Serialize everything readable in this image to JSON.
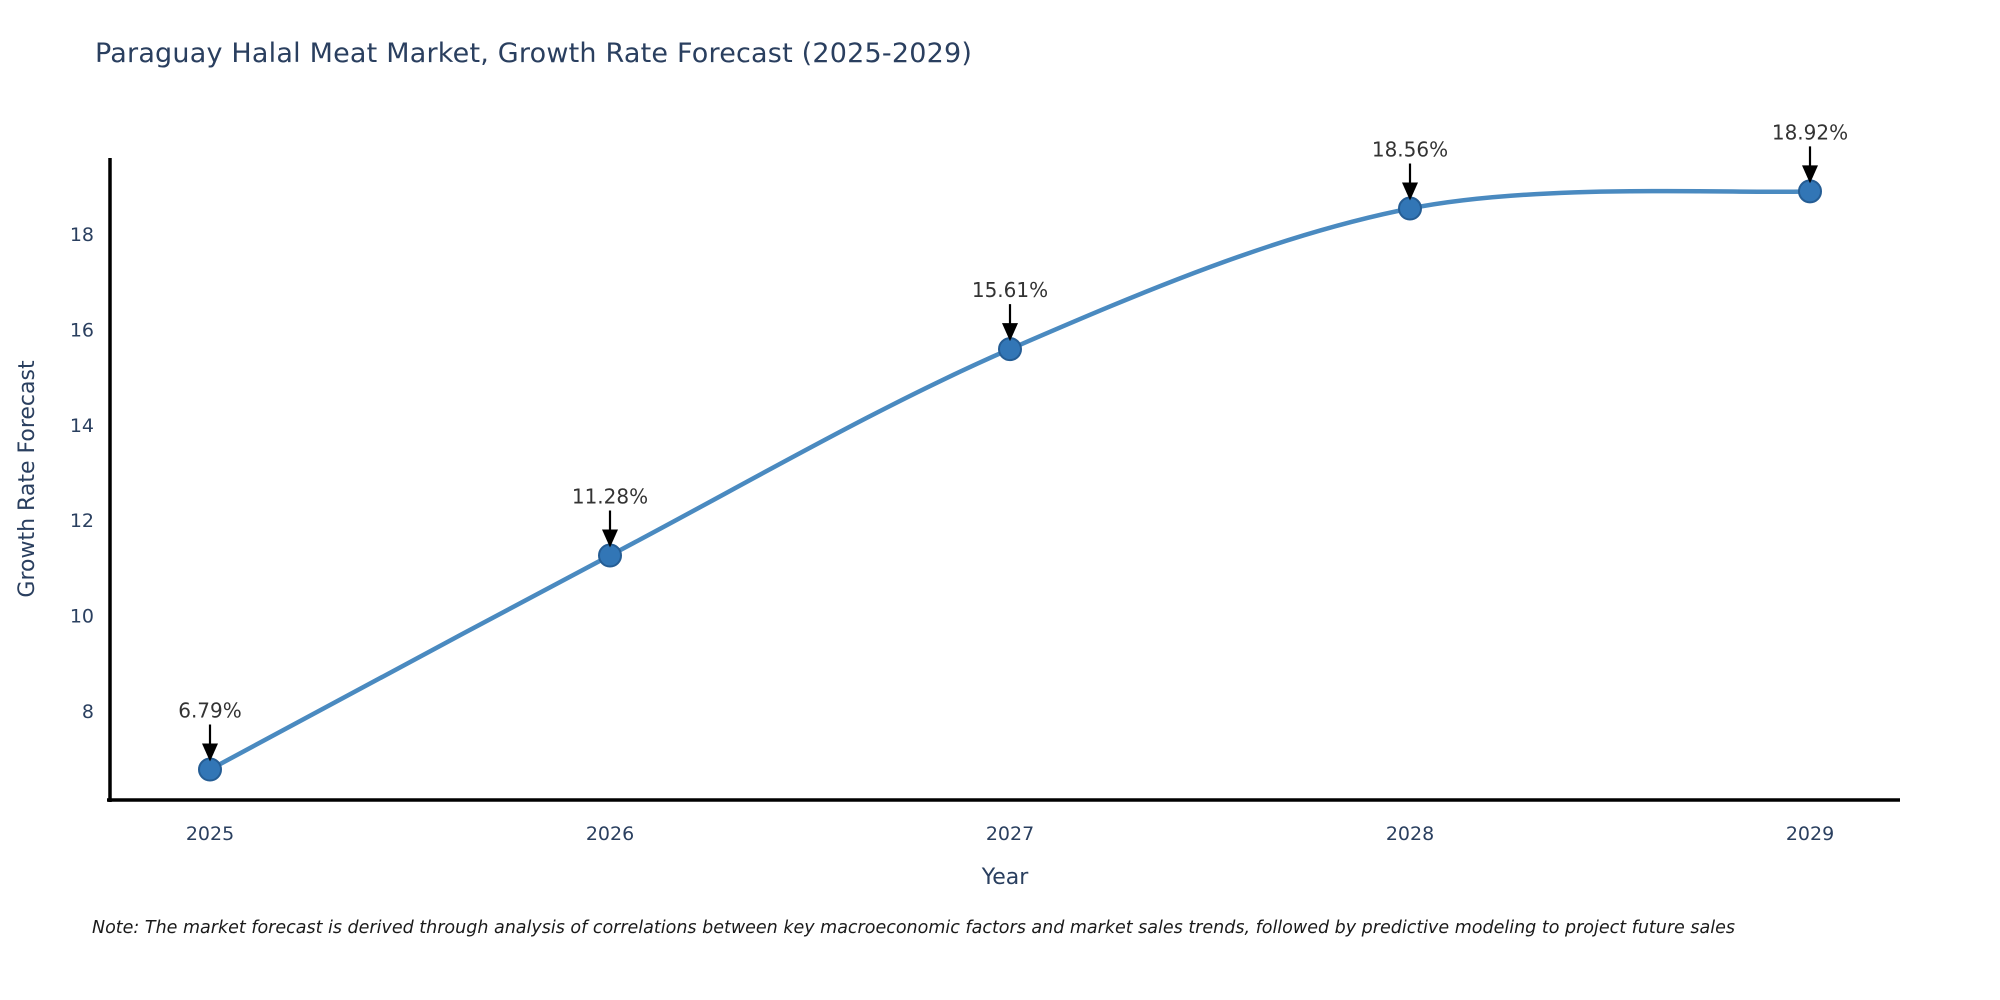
{
  "title": "Paraguay Halal Meat Market, Growth Rate Forecast (2025-2029)",
  "note": "Note: The market forecast is derived through analysis of correlations between key macroeconomic factors and market sales trends, followed by predictive modeling to project future sales",
  "chart_data": {
    "type": "line",
    "title": "Paraguay Halal Meat Market, Growth Rate Forecast (2025-2029)",
    "xlabel": "Year",
    "ylabel": "Growth Rate Forecast",
    "x": [
      2025,
      2026,
      2027,
      2028,
      2029
    ],
    "series": [
      {
        "name": "Growth Rate Forecast",
        "values": [
          6.79,
          11.28,
          15.61,
          18.56,
          18.92
        ]
      }
    ],
    "point_labels": [
      "6.79%",
      "11.28%",
      "15.61%",
      "18.56%",
      "18.92%"
    ],
    "yticks": [
      8,
      10,
      12,
      14,
      16,
      18
    ],
    "ylim": [
      6.15,
      19.62
    ],
    "grid": false,
    "legend_position": "none",
    "line_shape": "spline",
    "colors": {
      "line": "#4A8AC0",
      "marker_fill": "#3276B6",
      "marker_edge": "#255D94",
      "axis_line": "#000000",
      "axis_text": "#2a3f5f",
      "annotation_text": "#333333",
      "annotation_arrow": "#000000",
      "background": "#ffffff"
    }
  }
}
